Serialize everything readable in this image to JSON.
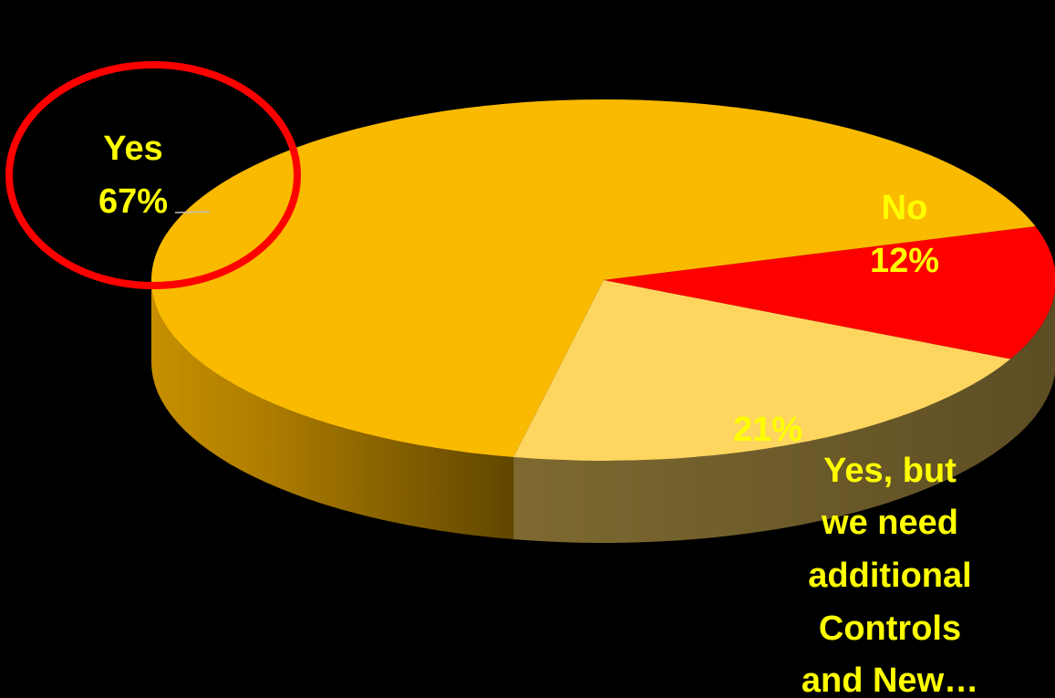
{
  "chart_data": {
    "type": "pie",
    "style": "3d",
    "slices": [
      {
        "label": "Yes",
        "value": 67,
        "value_text": "67%",
        "color": "#F9BA00"
      },
      {
        "label": "No",
        "value": 12,
        "value_text": "12%",
        "color": "#FF0000"
      },
      {
        "label": "Yes, but we need additional Controls and New…",
        "value": 21,
        "value_text": "21%",
        "color": "#FDD55F"
      }
    ],
    "label_lines": {
      "yes": [
        "Yes",
        "67%"
      ],
      "no": [
        "No",
        "12%"
      ],
      "yes_but_value": "21%",
      "yes_but": [
        "Yes, but",
        "we need",
        "additional",
        "Controls",
        "and New…"
      ]
    },
    "label_color": "#FFFF00",
    "highlight": {
      "target": "Yes",
      "shape": "ellipse",
      "color": "#FF0000"
    },
    "background": "#000000"
  }
}
